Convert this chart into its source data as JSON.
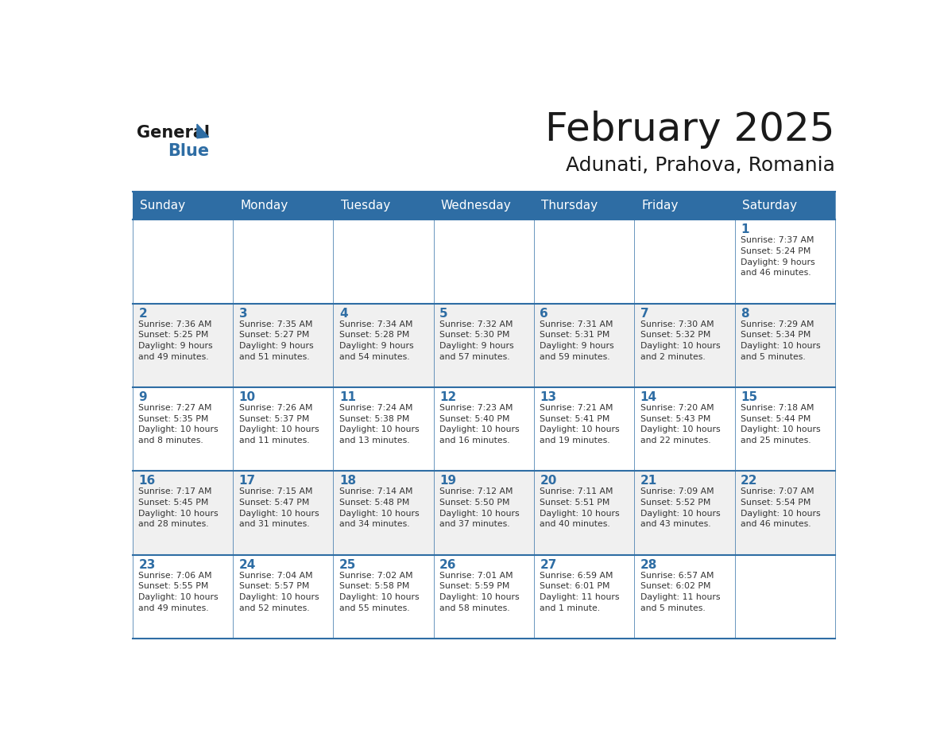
{
  "title": "February 2025",
  "subtitle": "Adunati, Prahova, Romania",
  "header_color": "#2E6DA4",
  "header_text_color": "#FFFFFF",
  "day_names": [
    "Sunday",
    "Monday",
    "Tuesday",
    "Wednesday",
    "Thursday",
    "Friday",
    "Saturday"
  ],
  "bg_color": "#FFFFFF",
  "cell_bg_even": "#F0F0F0",
  "cell_bg_odd": "#FFFFFF",
  "day_num_color": "#2E6DA4",
  "text_color": "#333333",
  "line_color": "#2E6DA4",
  "weeks": [
    [
      {
        "day": null,
        "info": null
      },
      {
        "day": null,
        "info": null
      },
      {
        "day": null,
        "info": null
      },
      {
        "day": null,
        "info": null
      },
      {
        "day": null,
        "info": null
      },
      {
        "day": null,
        "info": null
      },
      {
        "day": 1,
        "info": "Sunrise: 7:37 AM\nSunset: 5:24 PM\nDaylight: 9 hours\nand 46 minutes."
      }
    ],
    [
      {
        "day": 2,
        "info": "Sunrise: 7:36 AM\nSunset: 5:25 PM\nDaylight: 9 hours\nand 49 minutes."
      },
      {
        "day": 3,
        "info": "Sunrise: 7:35 AM\nSunset: 5:27 PM\nDaylight: 9 hours\nand 51 minutes."
      },
      {
        "day": 4,
        "info": "Sunrise: 7:34 AM\nSunset: 5:28 PM\nDaylight: 9 hours\nand 54 minutes."
      },
      {
        "day": 5,
        "info": "Sunrise: 7:32 AM\nSunset: 5:30 PM\nDaylight: 9 hours\nand 57 minutes."
      },
      {
        "day": 6,
        "info": "Sunrise: 7:31 AM\nSunset: 5:31 PM\nDaylight: 9 hours\nand 59 minutes."
      },
      {
        "day": 7,
        "info": "Sunrise: 7:30 AM\nSunset: 5:32 PM\nDaylight: 10 hours\nand 2 minutes."
      },
      {
        "day": 8,
        "info": "Sunrise: 7:29 AM\nSunset: 5:34 PM\nDaylight: 10 hours\nand 5 minutes."
      }
    ],
    [
      {
        "day": 9,
        "info": "Sunrise: 7:27 AM\nSunset: 5:35 PM\nDaylight: 10 hours\nand 8 minutes."
      },
      {
        "day": 10,
        "info": "Sunrise: 7:26 AM\nSunset: 5:37 PM\nDaylight: 10 hours\nand 11 minutes."
      },
      {
        "day": 11,
        "info": "Sunrise: 7:24 AM\nSunset: 5:38 PM\nDaylight: 10 hours\nand 13 minutes."
      },
      {
        "day": 12,
        "info": "Sunrise: 7:23 AM\nSunset: 5:40 PM\nDaylight: 10 hours\nand 16 minutes."
      },
      {
        "day": 13,
        "info": "Sunrise: 7:21 AM\nSunset: 5:41 PM\nDaylight: 10 hours\nand 19 minutes."
      },
      {
        "day": 14,
        "info": "Sunrise: 7:20 AM\nSunset: 5:43 PM\nDaylight: 10 hours\nand 22 minutes."
      },
      {
        "day": 15,
        "info": "Sunrise: 7:18 AM\nSunset: 5:44 PM\nDaylight: 10 hours\nand 25 minutes."
      }
    ],
    [
      {
        "day": 16,
        "info": "Sunrise: 7:17 AM\nSunset: 5:45 PM\nDaylight: 10 hours\nand 28 minutes."
      },
      {
        "day": 17,
        "info": "Sunrise: 7:15 AM\nSunset: 5:47 PM\nDaylight: 10 hours\nand 31 minutes."
      },
      {
        "day": 18,
        "info": "Sunrise: 7:14 AM\nSunset: 5:48 PM\nDaylight: 10 hours\nand 34 minutes."
      },
      {
        "day": 19,
        "info": "Sunrise: 7:12 AM\nSunset: 5:50 PM\nDaylight: 10 hours\nand 37 minutes."
      },
      {
        "day": 20,
        "info": "Sunrise: 7:11 AM\nSunset: 5:51 PM\nDaylight: 10 hours\nand 40 minutes."
      },
      {
        "day": 21,
        "info": "Sunrise: 7:09 AM\nSunset: 5:52 PM\nDaylight: 10 hours\nand 43 minutes."
      },
      {
        "day": 22,
        "info": "Sunrise: 7:07 AM\nSunset: 5:54 PM\nDaylight: 10 hours\nand 46 minutes."
      }
    ],
    [
      {
        "day": 23,
        "info": "Sunrise: 7:06 AM\nSunset: 5:55 PM\nDaylight: 10 hours\nand 49 minutes."
      },
      {
        "day": 24,
        "info": "Sunrise: 7:04 AM\nSunset: 5:57 PM\nDaylight: 10 hours\nand 52 minutes."
      },
      {
        "day": 25,
        "info": "Sunrise: 7:02 AM\nSunset: 5:58 PM\nDaylight: 10 hours\nand 55 minutes."
      },
      {
        "day": 26,
        "info": "Sunrise: 7:01 AM\nSunset: 5:59 PM\nDaylight: 10 hours\nand 58 minutes."
      },
      {
        "day": 27,
        "info": "Sunrise: 6:59 AM\nSunset: 6:01 PM\nDaylight: 11 hours\nand 1 minute."
      },
      {
        "day": 28,
        "info": "Sunrise: 6:57 AM\nSunset: 6:02 PM\nDaylight: 11 hours\nand 5 minutes."
      },
      {
        "day": null,
        "info": null
      }
    ]
  ]
}
